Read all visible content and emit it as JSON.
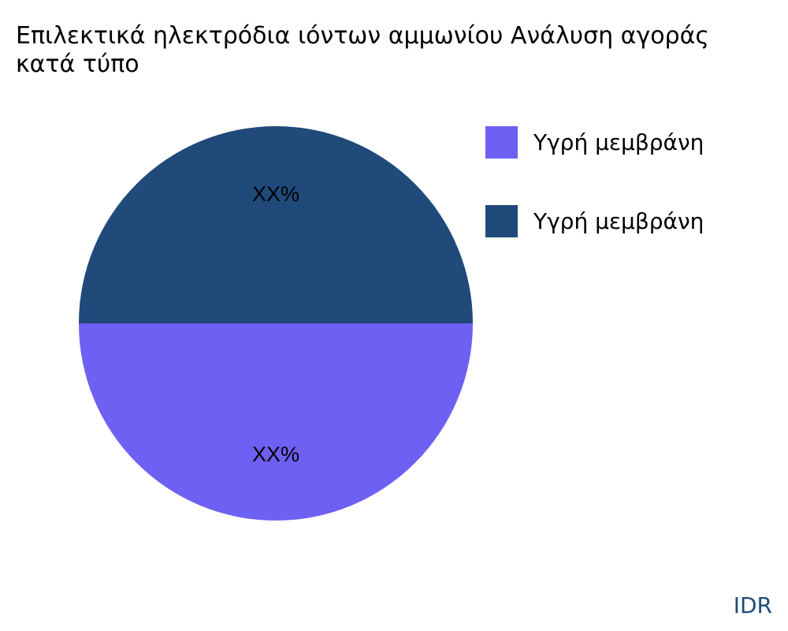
{
  "chart_data": {
    "type": "pie",
    "title_lines": [
      "Επιλεκτικά ηλεκτρόδια ιόντων αμμωνίου Ανάλυση αγοράς",
      "κατά τύπο"
    ],
    "slices": [
      {
        "name": "Υγρή μεμβράνη",
        "value": 50,
        "label": "XX%",
        "color": "#6e60f2"
      },
      {
        "name": "Υγρή μεμβράνη",
        "value": 50,
        "label": "XX%",
        "color": "#1f4a7a"
      }
    ],
    "legend_position": "right"
  },
  "brand": "IDR"
}
